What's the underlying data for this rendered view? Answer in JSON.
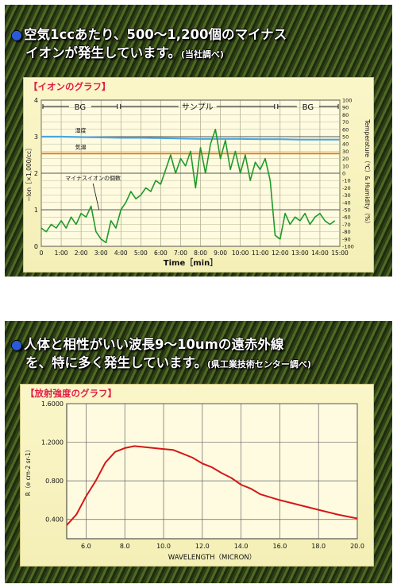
{
  "top_section": {
    "headline_line1": "空気1ccあたり、500～1,200個のマイナス",
    "headline_line2": "イオンが発生しています。",
    "headline_source": "(当社調べ)"
  },
  "bottom_section": {
    "headline_line1": "人体と相性がいい波長9～10umの遠赤外線",
    "headline_line2": "を、特に多く発生しています。",
    "headline_source": "(県工業技術センター調べ)"
  },
  "colors": {
    "ion_series": "#1f9a2a",
    "humidity_series": "#4aa6e0",
    "temperature_series": "#e08a1e",
    "emission_series": "#d41818",
    "title": "#e11d48"
  },
  "chart_data": [
    {
      "type": "line",
      "title": "【イオンのグラフ】",
      "xlabel": "Time［min］",
      "ylabel": "−Ion［×1,000/cc］",
      "y2label": "Temperature（℃）& Humidity（%）",
      "xlim": [
        0,
        15
      ],
      "ylim": [
        0,
        4
      ],
      "y2lim": [
        -100,
        100
      ],
      "x_ticks": [
        "0",
        "1:00",
        "2:00",
        "3:00",
        "4:00",
        "5:00",
        "6:00",
        "7:00",
        "8:00",
        "9:00",
        "10:00",
        "11:00",
        "12:00",
        "13:00",
        "14:00",
        "15:00"
      ],
      "y_ticks": [
        "0",
        "1",
        "2",
        "3",
        "4"
      ],
      "y2_ticks": [
        "100",
        "90",
        "80",
        "70",
        "60",
        "50",
        "40",
        "30",
        "20",
        "10",
        "0",
        "-10",
        "-20",
        "-30",
        "-40",
        "-50",
        "-60",
        "-70",
        "-80",
        "-90",
        "-100"
      ],
      "grid": true,
      "phases": [
        {
          "label": "BG",
          "start": 0,
          "end": 3.9
        },
        {
          "label": "サンプル",
          "start": 3.9,
          "end": 11.8
        },
        {
          "label": "BG",
          "start": 11.8,
          "end": 15
        }
      ],
      "series": [
        {
          "name": "湿度",
          "axis": "right",
          "x": [
            0,
            1,
            2,
            3,
            4,
            5,
            6,
            7,
            8,
            9,
            10,
            11,
            12,
            13,
            14,
            15
          ],
          "values": [
            50,
            50,
            49.5,
            49,
            48.5,
            48.5,
            48,
            47.5,
            47,
            47,
            47,
            46.5,
            46.5,
            46,
            46,
            46
          ]
        },
        {
          "name": "気温",
          "axis": "right",
          "x": [
            0,
            3,
            6,
            9,
            12,
            15
          ],
          "values": [
            27,
            27,
            27,
            27,
            27,
            27
          ]
        },
        {
          "name": "マイナスイオンの個数",
          "axis": "left",
          "x": [
            0,
            0.25,
            0.5,
            0.75,
            1,
            1.25,
            1.5,
            1.75,
            2,
            2.25,
            2.5,
            2.75,
            3,
            3.25,
            3.5,
            3.75,
            4,
            4.25,
            4.5,
            4.75,
            5,
            5.25,
            5.5,
            5.75,
            6,
            6.25,
            6.5,
            6.75,
            7,
            7.25,
            7.5,
            7.75,
            8,
            8.25,
            8.5,
            8.75,
            9,
            9.25,
            9.5,
            9.75,
            10,
            10.25,
            10.5,
            10.75,
            11,
            11.25,
            11.5,
            11.75,
            12,
            12.25,
            12.5,
            12.75,
            13,
            13.25,
            13.5,
            13.75,
            14,
            14.25,
            14.5,
            14.75
          ],
          "values": [
            0.5,
            0.4,
            0.6,
            0.5,
            0.7,
            0.5,
            0.8,
            0.6,
            0.9,
            0.8,
            1.1,
            0.4,
            0.2,
            0.1,
            0.7,
            0.5,
            1.0,
            1.2,
            1.5,
            1.3,
            1.4,
            1.6,
            1.5,
            1.8,
            1.7,
            2.1,
            2.5,
            2.0,
            2.4,
            2.2,
            2.6,
            1.6,
            2.7,
            2.0,
            2.8,
            3.2,
            2.4,
            2.9,
            2.1,
            2.6,
            2.0,
            2.5,
            1.8,
            2.3,
            2.1,
            2.4,
            1.8,
            0.3,
            0.2,
            0.9,
            0.6,
            0.8,
            0.7,
            0.9,
            0.6,
            0.8,
            0.9,
            0.7,
            0.6,
            0.7
          ]
        }
      ]
    },
    {
      "type": "line",
      "title": "【放射強度のグラフ】",
      "xlabel": "WAVELENGTH（MICRON）",
      "ylabel": "R（e cm-2 sr-1）",
      "xlim": [
        5,
        20
      ],
      "ylim": [
        0.2,
        1.6
      ],
      "x_ticks": [
        "6.0",
        "8.0",
        "10.0",
        "12.0",
        "14.0",
        "16.0",
        "18.0",
        "20.0"
      ],
      "y_ticks": [
        "0.400",
        "0.800",
        "1.2000",
        "1.6000"
      ],
      "grid": true,
      "series": [
        {
          "x": [
            5,
            5.5,
            6,
            6.5,
            7,
            7.5,
            8,
            8.5,
            9,
            9.5,
            10,
            10.5,
            11,
            11.5,
            12,
            12.5,
            13,
            13.5,
            14,
            14.5,
            15,
            16,
            17,
            18,
            19,
            20
          ],
          "values": [
            0.34,
            0.45,
            0.64,
            0.8,
            0.99,
            1.1,
            1.14,
            1.16,
            1.15,
            1.14,
            1.13,
            1.12,
            1.08,
            1.04,
            0.98,
            0.94,
            0.88,
            0.83,
            0.76,
            0.72,
            0.66,
            0.6,
            0.55,
            0.5,
            0.45,
            0.41
          ]
        }
      ]
    }
  ]
}
